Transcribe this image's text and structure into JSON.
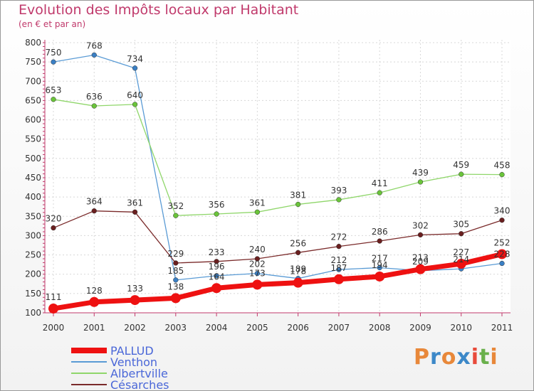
{
  "title": "Evolution des Impôts locaux par Habitant",
  "subtitle": "(en € et par an)",
  "brand": {
    "letters": [
      "P",
      "r",
      "o",
      "x",
      "i",
      "t",
      "i"
    ],
    "colors": [
      "#e8883a",
      "#3c88c8",
      "#e8883a",
      "#3c88c8",
      "#e84a3a",
      "#6ab04c",
      "#e8883a"
    ]
  },
  "chart_data": {
    "type": "line",
    "title": "Evolution des Impôts locaux par Habitant",
    "subtitle": "(en € et par an)",
    "xlabel": "",
    "ylabel": "",
    "ylim": [
      100,
      800
    ],
    "yticks": [
      100,
      150,
      200,
      250,
      300,
      350,
      400,
      450,
      500,
      550,
      600,
      650,
      700,
      750,
      800
    ],
    "categories": [
      "2000",
      "2001",
      "2002",
      "2003",
      "2004",
      "2005",
      "2006",
      "2007",
      "2008",
      "2009",
      "2010",
      "2011"
    ],
    "grid": true,
    "legend_position": "bottom-left",
    "series": [
      {
        "name": "Venthon",
        "color": "#5a9bd5",
        "marker": "#3a7fc4",
        "values": [
          750,
          768,
          734,
          185,
          196,
          202,
          189,
          212,
          217,
          209,
          214,
          228
        ],
        "labels": [
          "750",
          "768",
          "734",
          "185",
          "196",
          "202",
          "189",
          "212",
          "217",
          "209",
          "214",
          "228"
        ]
      },
      {
        "name": "Albertville",
        "color": "#8fd66a",
        "marker": "#6ac43a",
        "values": [
          653,
          636,
          640,
          352,
          356,
          361,
          381,
          393,
          411,
          439,
          459,
          458
        ],
        "labels": [
          "653",
          "636",
          "640",
          "352",
          "356",
          "361",
          "381",
          "393",
          "411",
          "439",
          "459",
          "458"
        ]
      },
      {
        "name": "Césarches",
        "color": "#7a2a2a",
        "marker": "#6a1f1f",
        "values": [
          320,
          364,
          361,
          229,
          233,
          240,
          256,
          272,
          286,
          302,
          305,
          340
        ],
        "labels": [
          "320",
          "364",
          "361",
          "229",
          "233",
          "240",
          "256",
          "272",
          "286",
          "302",
          "305",
          "340"
        ]
      },
      {
        "name": "PALLUD",
        "color": "#ee1111",
        "marker": "#ee1111",
        "values": [
          111,
          128,
          133,
          138,
          164,
          173,
          178,
          187,
          194,
          213,
          227,
          252
        ],
        "labels": [
          "111",
          "128",
          "133",
          "138",
          "164",
          "173",
          "178",
          "187",
          "194",
          "213",
          "227",
          "252"
        ]
      }
    ],
    "legend": [
      "PALLUD",
      "Venthon",
      "Albertville",
      "Césarches"
    ]
  }
}
